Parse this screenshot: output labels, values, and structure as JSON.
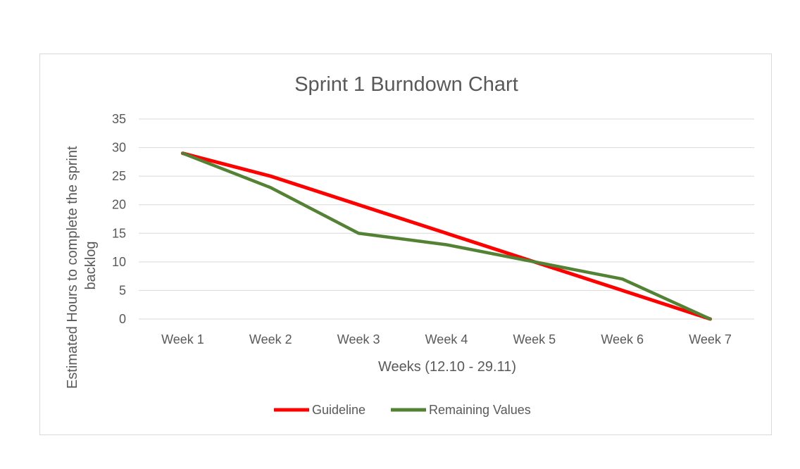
{
  "chart_data": {
    "type": "line",
    "title": "Sprint 1 Burndown Chart",
    "xlabel": "Weeks (12.10 - 29.11)",
    "ylabel": [
      "Estimated Hours to complete the sprint",
      "backlog"
    ],
    "categories": [
      "Week 1",
      "Week 2",
      "Week 3",
      "Week 4",
      "Week 5",
      "Week 6",
      "Week 7"
    ],
    "ylim": [
      0,
      35
    ],
    "yticks": [
      "0",
      "5",
      "10",
      "15",
      "20",
      "25",
      "30",
      "35"
    ],
    "grid": true,
    "legend_position": "bottom",
    "series": [
      {
        "name": "Guideline",
        "color": "#ff0000",
        "values": [
          29,
          25,
          20,
          15,
          10,
          5,
          0
        ]
      },
      {
        "name": "Remaining Values",
        "color": "#548235",
        "values": [
          29,
          23,
          15,
          13,
          10,
          7,
          0
        ]
      }
    ]
  }
}
